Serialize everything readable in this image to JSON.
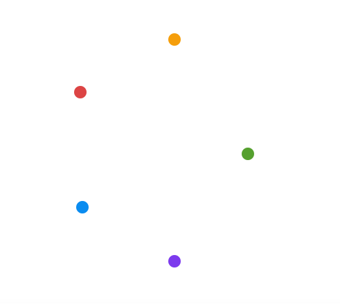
{
  "dots": [
    {
      "name": "orange-dot",
      "color": "#F59E0B"
    },
    {
      "name": "red-dot",
      "color": "#DC4444"
    },
    {
      "name": "green-dot",
      "color": "#55A02E"
    },
    {
      "name": "blue-dot",
      "color": "#0A8CF0"
    },
    {
      "name": "purple-dot",
      "color": "#7C3AED"
    }
  ]
}
